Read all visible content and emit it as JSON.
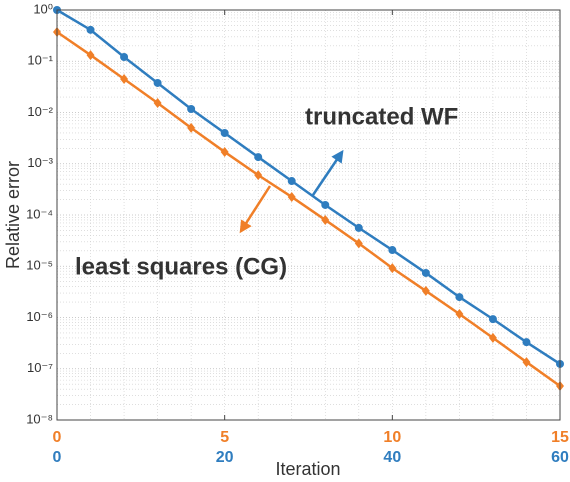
{
  "chart_data": {
    "type": "line",
    "y_label": "Relative error",
    "x_label": "Iteration",
    "y_scale": "log",
    "grid": true,
    "minor_grid": true,
    "ylim": [
      1e-08,
      1
    ],
    "yticks": [
      {
        "value": 1,
        "label": "10⁰"
      },
      {
        "value": 0.1,
        "label": "10⁻¹"
      },
      {
        "value": 0.01,
        "label": "10⁻²"
      },
      {
        "value": 0.001,
        "label": "10⁻³"
      },
      {
        "value": 0.0001,
        "label": "10⁻⁴"
      },
      {
        "value": 1e-05,
        "label": "10⁻⁵"
      },
      {
        "value": 1e-06,
        "label": "10⁻⁶"
      },
      {
        "value": 1e-07,
        "label": "10⁻⁷"
      },
      {
        "value": 1e-08,
        "label": "10⁻⁸"
      }
    ],
    "xlim": [
      0,
      15
    ],
    "xticks": [
      0,
      5,
      10,
      15
    ],
    "xtick_color": "#f07f28",
    "x2lim": [
      0,
      60
    ],
    "x2ticks": [
      0,
      20,
      40,
      60
    ],
    "x2tick_color": "#2f7dbf",
    "series": [
      {
        "name": "truncated WF",
        "color": "#2f7dbf",
        "marker": "circle",
        "axis": "x2",
        "x": [
          0,
          4,
          8,
          12,
          16,
          20,
          24,
          28,
          32,
          36,
          40,
          44,
          48,
          52,
          56,
          60
        ],
        "values": [
          1,
          0.41,
          0.121,
          0.0377,
          0.0117,
          0.00398,
          0.00135,
          0.00046,
          0.000157,
          5.6e-05,
          2.07e-05,
          7.4e-06,
          2.5e-06,
          9.3e-07,
          3.3e-07,
          1.24e-07
        ]
      },
      {
        "name": "least squares (CG)",
        "color": "#f07f28",
        "marker": "diamond",
        "axis": "x",
        "x": [
          0,
          1,
          2,
          3,
          4,
          5,
          6,
          7,
          8,
          9,
          10,
          11,
          12,
          13,
          14,
          15
        ],
        "values": [
          0.372,
          0.132,
          0.045,
          0.0153,
          0.005,
          0.0017,
          0.0006,
          0.000225,
          8e-05,
          2.8e-05,
          9.2e-06,
          3.3e-06,
          1.17e-06,
          4e-07,
          1.35e-07,
          4.6e-08
        ]
      }
    ]
  }
}
